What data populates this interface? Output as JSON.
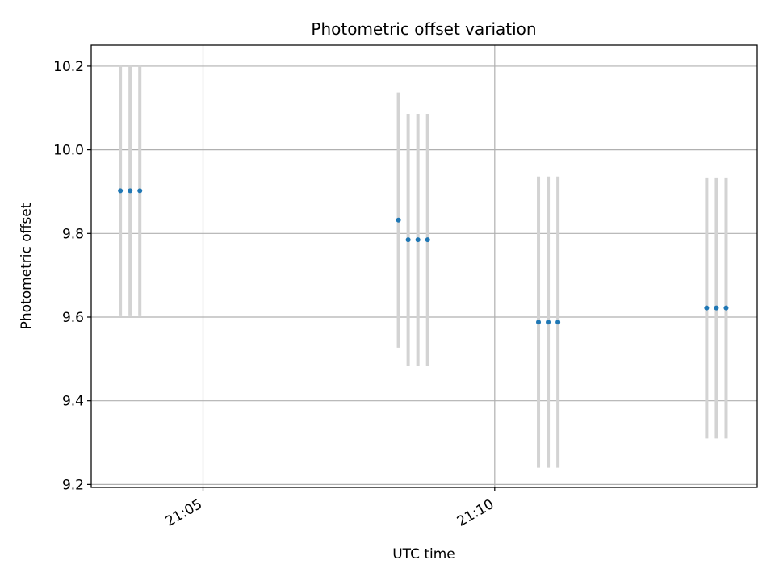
{
  "chart_data": {
    "type": "scatter",
    "title": "Photometric offset variation",
    "xlabel": "UTC time",
    "ylabel": "Photometric offset",
    "x_unit": "time (HH:MM, UTC)",
    "x_ticks": [
      "21:05",
      "21:10"
    ],
    "y_ticks": [
      "9.2",
      "9.4",
      "9.6",
      "9.8",
      "10.0",
      "10.2"
    ],
    "xlim": [
      "21:03:05",
      "21:14:30"
    ],
    "ylim": [
      9.193,
      10.25
    ],
    "grid": true,
    "marker_color": "#1f77b4",
    "errorbar_color": "#d3d3d3",
    "points": [
      {
        "time": "21:03:35",
        "y": 9.902,
        "err": 0.298
      },
      {
        "time": "21:03:45",
        "y": 9.902,
        "err": 0.298
      },
      {
        "time": "21:03:55",
        "y": 9.902,
        "err": 0.298
      },
      {
        "time": "21:08:21",
        "y": 9.832,
        "err": 0.305
      },
      {
        "time": "21:08:31",
        "y": 9.785,
        "err": 0.301
      },
      {
        "time": "21:08:41",
        "y": 9.785,
        "err": 0.301
      },
      {
        "time": "21:08:51",
        "y": 9.785,
        "err": 0.301
      },
      {
        "time": "21:10:45",
        "y": 9.588,
        "err": 0.348
      },
      {
        "time": "21:10:55",
        "y": 9.588,
        "err": 0.348
      },
      {
        "time": "21:11:05",
        "y": 9.588,
        "err": 0.348
      },
      {
        "time": "21:13:38",
        "y": 9.622,
        "err": 0.312
      },
      {
        "time": "21:13:48",
        "y": 9.622,
        "err": 0.312
      },
      {
        "time": "21:13:58",
        "y": 9.622,
        "err": 0.312
      }
    ]
  }
}
